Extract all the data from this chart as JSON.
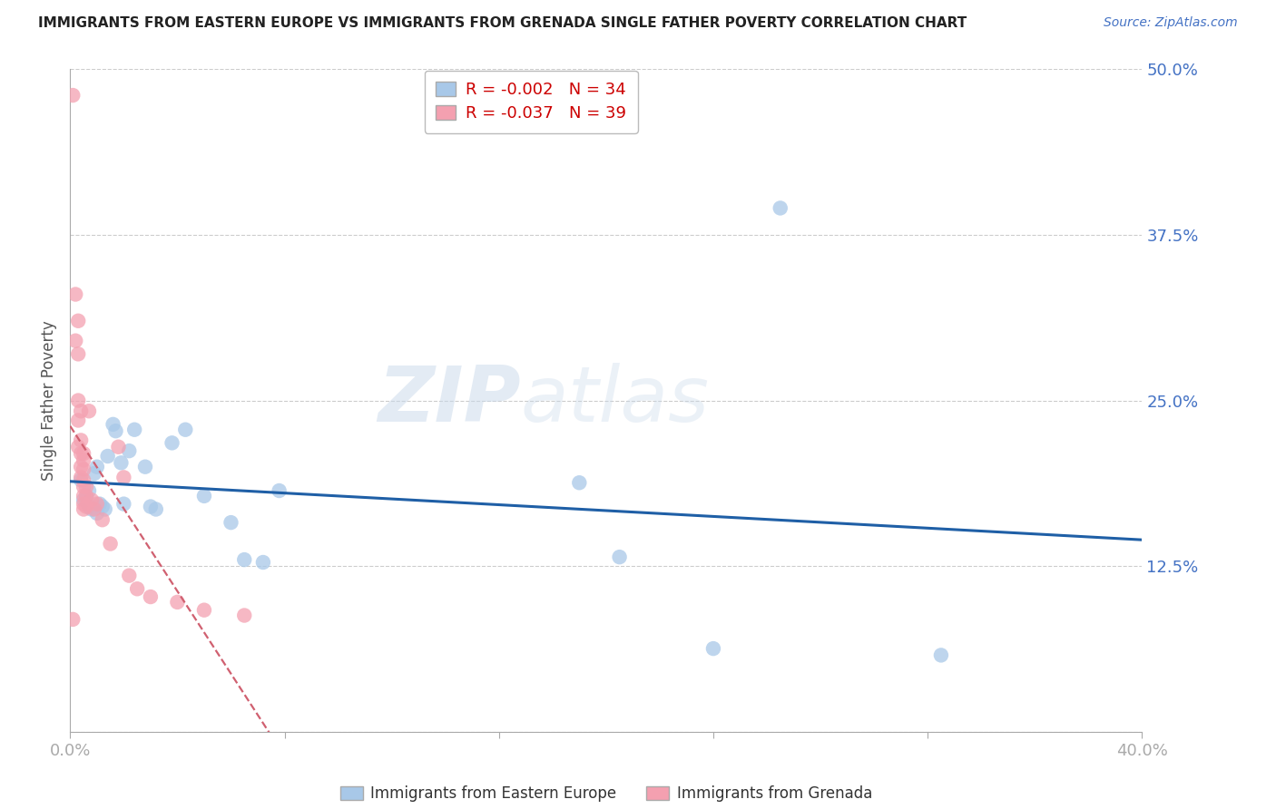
{
  "title": "IMMIGRANTS FROM EASTERN EUROPE VS IMMIGRANTS FROM GRENADA SINGLE FATHER POVERTY CORRELATION CHART",
  "source": "Source: ZipAtlas.com",
  "ylabel": "Single Father Poverty",
  "legend_label1": "Immigrants from Eastern Europe",
  "legend_label2": "Immigrants from Grenada",
  "R1": "-0.002",
  "N1": "34",
  "R2": "-0.037",
  "N2": "39",
  "color1": "#a8c8e8",
  "color2": "#f4a0b0",
  "line_color1": "#1f5fa6",
  "line_color2": "#d06070",
  "xlim": [
    0.0,
    0.4
  ],
  "ylim": [
    0.0,
    0.5
  ],
  "ytick_pcts": [
    0.0,
    0.125,
    0.25,
    0.375,
    0.5
  ],
  "ytick_labels": [
    "",
    "12.5%",
    "25.0%",
    "37.5%",
    "50.0%"
  ],
  "xtick_pcts": [
    0.0,
    0.08,
    0.16,
    0.24,
    0.32,
    0.4
  ],
  "xtick_labels": [
    "0.0%",
    "",
    "",
    "",
    "",
    "40.0%"
  ],
  "watermark_part1": "ZIP",
  "watermark_part2": "atlas",
  "blue_scatter_x": [
    0.004,
    0.005,
    0.006,
    0.007,
    0.007,
    0.008,
    0.009,
    0.01,
    0.01,
    0.011,
    0.012,
    0.013,
    0.014,
    0.016,
    0.017,
    0.019,
    0.02,
    0.022,
    0.024,
    0.028,
    0.03,
    0.032,
    0.038,
    0.043,
    0.05,
    0.06,
    0.065,
    0.072,
    0.078,
    0.19,
    0.205,
    0.24,
    0.265,
    0.325
  ],
  "blue_scatter_y": [
    0.19,
    0.175,
    0.178,
    0.182,
    0.17,
    0.168,
    0.195,
    0.2,
    0.165,
    0.172,
    0.17,
    0.168,
    0.208,
    0.232,
    0.227,
    0.203,
    0.172,
    0.212,
    0.228,
    0.2,
    0.17,
    0.168,
    0.218,
    0.228,
    0.178,
    0.158,
    0.13,
    0.128,
    0.182,
    0.188,
    0.132,
    0.063,
    0.395,
    0.058
  ],
  "pink_scatter_x": [
    0.001,
    0.001,
    0.002,
    0.002,
    0.003,
    0.003,
    0.003,
    0.003,
    0.003,
    0.004,
    0.004,
    0.004,
    0.004,
    0.004,
    0.005,
    0.005,
    0.005,
    0.005,
    0.005,
    0.005,
    0.005,
    0.005,
    0.006,
    0.006,
    0.006,
    0.007,
    0.008,
    0.009,
    0.01,
    0.012,
    0.015,
    0.018,
    0.02,
    0.022,
    0.025,
    0.03,
    0.04,
    0.05,
    0.065
  ],
  "pink_scatter_y": [
    0.48,
    0.085,
    0.33,
    0.295,
    0.31,
    0.285,
    0.25,
    0.235,
    0.215,
    0.242,
    0.22,
    0.21,
    0.2,
    0.192,
    0.21,
    0.205,
    0.198,
    0.19,
    0.185,
    0.178,
    0.172,
    0.168,
    0.185,
    0.178,
    0.17,
    0.242,
    0.175,
    0.168,
    0.172,
    0.16,
    0.142,
    0.215,
    0.192,
    0.118,
    0.108,
    0.102,
    0.098,
    0.092,
    0.088
  ]
}
